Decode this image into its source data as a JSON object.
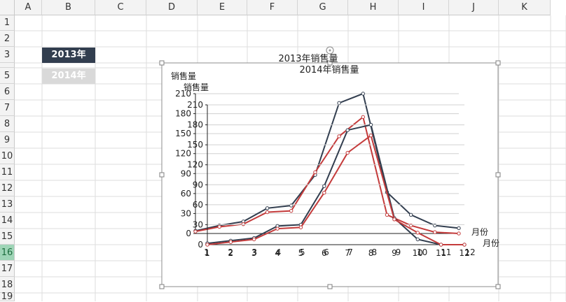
{
  "sheet": {
    "columns": [
      "A",
      "B",
      "C",
      "D",
      "E",
      "F",
      "G",
      "H",
      "I",
      "J",
      "K"
    ],
    "rows": [
      "1",
      "2",
      "3",
      "4",
      "5",
      "6",
      "7",
      "8",
      "9",
      "10",
      "11",
      "12",
      "13",
      "14",
      "15",
      "16",
      "17",
      "18",
      "19"
    ],
    "active_row": "16",
    "legend_cells": [
      {
        "text": "2013年",
        "bg": "#323e4f"
      },
      {
        "text": "2014年",
        "bg": "#d9d9d9"
      }
    ]
  },
  "chart_data": [
    {
      "type": "line",
      "title": "2013年销售量",
      "ylabel": "销售量",
      "xlabel": "月份",
      "x": [
        1,
        2,
        3,
        4,
        5,
        6,
        7,
        8,
        9,
        10,
        11,
        12
      ],
      "ylim": [
        0,
        210
      ],
      "yticks": [
        0,
        30,
        60,
        90,
        120,
        150,
        180,
        210
      ],
      "series": [
        {
          "color": "#323e4f",
          "values": [
            4,
            12,
            18,
            38,
            42,
            88,
            196,
            210,
            62,
            28,
            12,
            8
          ]
        },
        {
          "color": "#c43b3b",
          "values": [
            3,
            10,
            14,
            32,
            34,
            92,
            146,
            175,
            28,
            12,
            2,
            0
          ]
        }
      ]
    },
    {
      "type": "line",
      "title": "2014年销售量",
      "ylabel": "销售量",
      "xlabel": "月份",
      "x": [
        1,
        2,
        3,
        4,
        5,
        6,
        7,
        8,
        9,
        10,
        11,
        12
      ],
      "ylim": [
        0,
        210
      ],
      "yticks": [
        0,
        30,
        60,
        90,
        120,
        150,
        180,
        210
      ],
      "series": [
        {
          "color": "#323e4f",
          "values": [
            2,
            6,
            10,
            28,
            30,
            88,
            172,
            180,
            40,
            8,
            0,
            0
          ]
        },
        {
          "color": "#c43b3b",
          "values": [
            0,
            4,
            8,
            24,
            26,
            78,
            138,
            164,
            38,
            18,
            0,
            0
          ]
        }
      ]
    }
  ]
}
